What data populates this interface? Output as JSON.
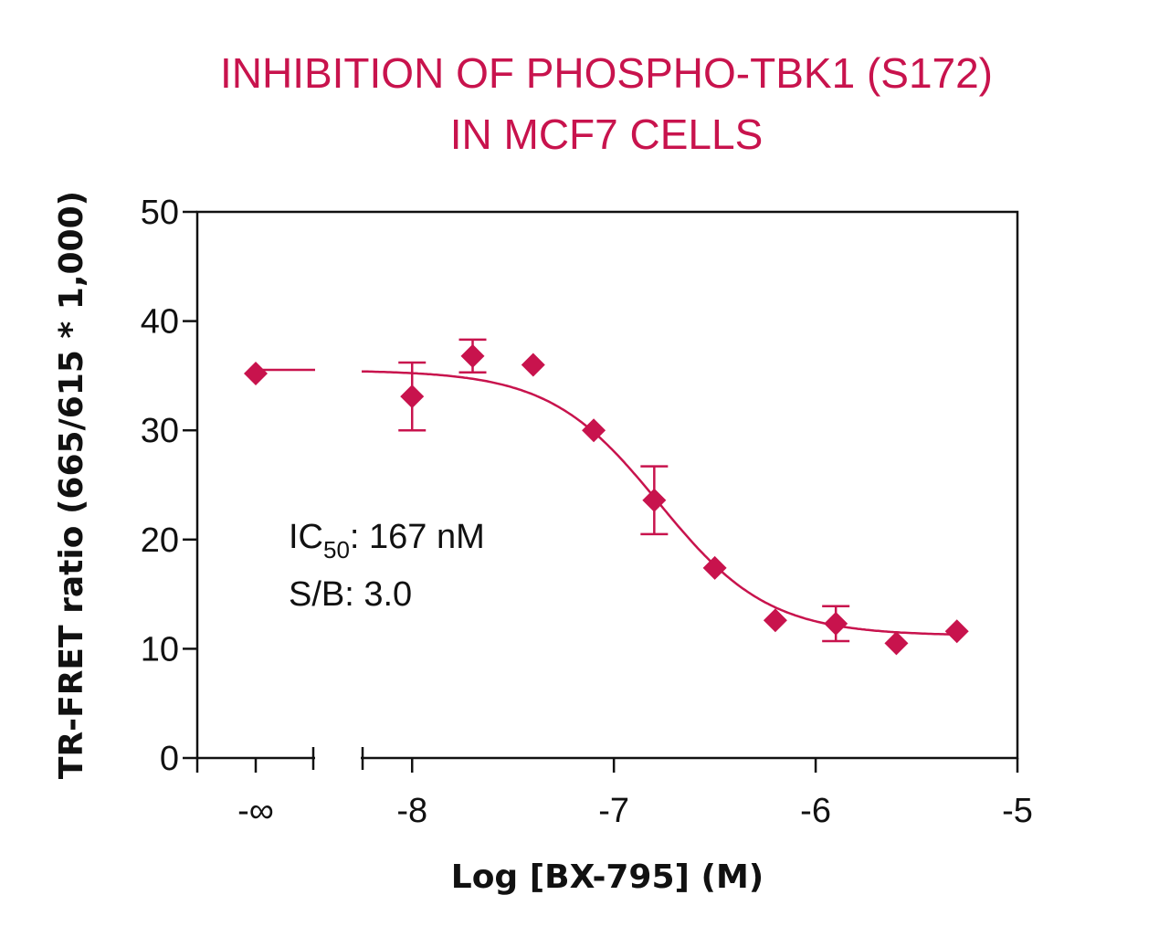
{
  "colors": {
    "accent": "#c8134d",
    "axis": "#111111"
  },
  "chart_data": {
    "type": "scatter",
    "title": [
      "INHIBITION OF PHOSPHO-TBK1 (S172)",
      "IN MCF7 CELLS"
    ],
    "xlabel": "Log [BX-795] (M)",
    "ylabel": "TR-FRET ratio (665/615 * 1,000)",
    "xlim": [
      -8.25,
      -5
    ],
    "ylim": [
      0,
      50
    ],
    "x_ticks": [
      {
        "value": "-inf",
        "label": "-∞"
      },
      {
        "value": -8,
        "label": "-8"
      },
      {
        "value": -7,
        "label": "-7"
      },
      {
        "value": -6,
        "label": "-6"
      },
      {
        "value": -5,
        "label": "-5"
      }
    ],
    "y_ticks": [
      0,
      10,
      20,
      30,
      40,
      50
    ],
    "axis_break": true,
    "grid": false,
    "baseline_point": {
      "x": "-inf",
      "y": 35.2
    },
    "series": [
      {
        "points": [
          {
            "x": -8.0,
            "y": 33.1,
            "err": 3.1
          },
          {
            "x": -7.7,
            "y": 36.8,
            "err": 1.5
          },
          {
            "x": -7.4,
            "y": 36.0,
            "err": 0
          },
          {
            "x": -7.1,
            "y": 30.0,
            "err": 0
          },
          {
            "x": -6.8,
            "y": 23.6,
            "err": 3.1
          },
          {
            "x": -6.5,
            "y": 17.4,
            "err": 0
          },
          {
            "x": -6.2,
            "y": 12.6,
            "err": 0
          },
          {
            "x": -5.9,
            "y": 12.3,
            "err": 1.6
          },
          {
            "x": -5.6,
            "y": 10.5,
            "err": 0
          },
          {
            "x": -5.3,
            "y": 11.6,
            "err": 0
          }
        ]
      }
    ],
    "fit": {
      "top": 35.5,
      "bottom": 11.2,
      "log_ic50": -6.777,
      "hill": 1.6
    },
    "annotations": {
      "ic50_prefix": "IC",
      "ic50_sub": "50",
      "ic50_value": ": 167 nM",
      "sb": "S/B: 3.0"
    }
  }
}
